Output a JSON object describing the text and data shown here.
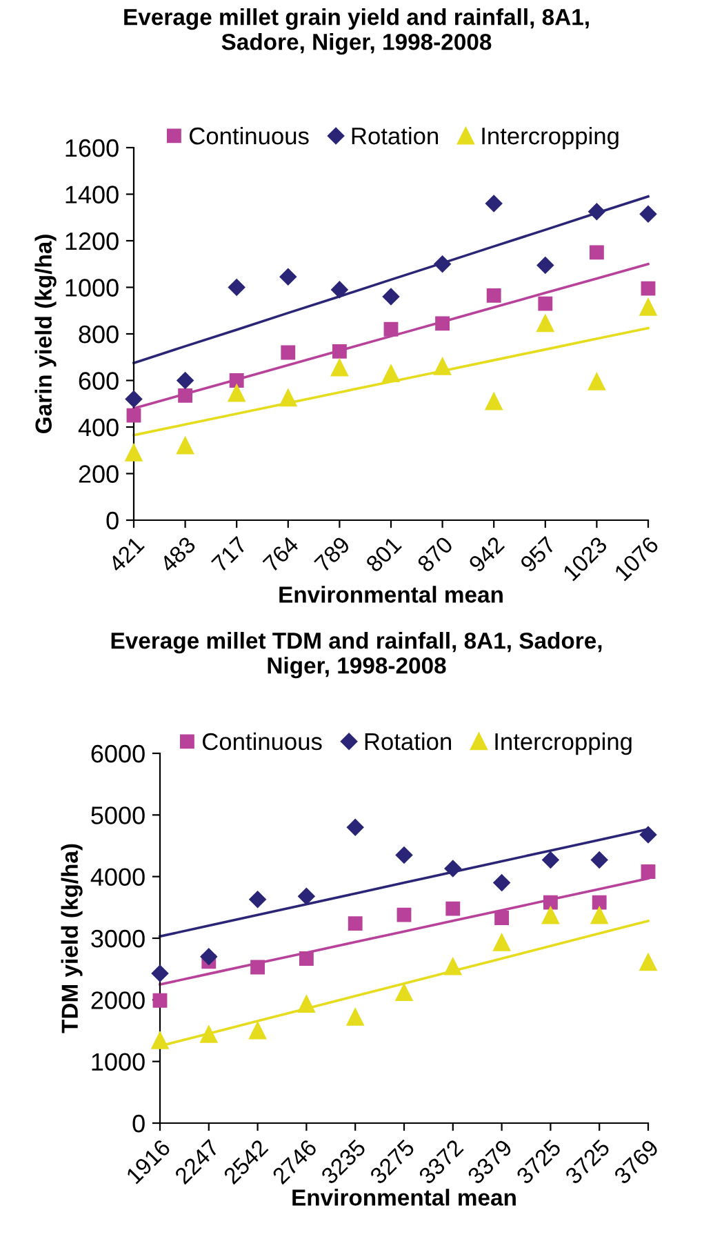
{
  "chart_data": [
    {
      "type": "scatter",
      "title": "Everage millet grain yield and rainfall, 8A1,\nSadore, Niger, 1998-2008",
      "xlabel": "Environmental mean",
      "ylabel": "Garin yield (kg/ha)",
      "categories": [
        "421",
        "483",
        "717",
        "764",
        "789",
        "801",
        "870",
        "942",
        "957",
        "1023",
        "1076"
      ],
      "ylim": [
        0,
        1600
      ],
      "yticks": [
        0,
        200,
        400,
        600,
        800,
        1000,
        1200,
        1400,
        1600
      ],
      "legend": "top",
      "grid": false,
      "series": [
        {
          "name": "Continuous",
          "color": "#b8429a",
          "marker": "square",
          "values": [
            450,
            535,
            600,
            720,
            725,
            820,
            845,
            965,
            930,
            1150,
            995
          ]
        },
        {
          "name": "Rotation",
          "color": "#2b2577",
          "marker": "diamond",
          "values": [
            520,
            600,
            1000,
            1045,
            990,
            960,
            1100,
            1360,
            1095,
            1325,
            1315
          ]
        },
        {
          "name": "Intercropping",
          "color": "#e6dc1e",
          "marker": "triangle",
          "values": [
            290,
            320,
            545,
            525,
            655,
            630,
            660,
            510,
            845,
            595,
            915
          ]
        },
        {
          "type": "line",
          "color": "#b8429a",
          "marker": "none",
          "values": [
            480,
            542,
            604,
            666,
            728,
            790,
            852,
            914,
            976,
            1038,
            1100
          ]
        },
        {
          "type": "line",
          "color": "#2b2577",
          "marker": "none",
          "values": [
            675,
            747,
            818,
            890,
            961,
            1033,
            1104,
            1176,
            1247,
            1319,
            1390
          ]
        },
        {
          "type": "line",
          "color": "#e6dc1e",
          "marker": "none",
          "values": [
            365,
            411,
            457,
            503,
            549,
            595,
            641,
            687,
            733,
            779,
            825
          ]
        }
      ]
    },
    {
      "type": "scatter",
      "title": "Everage millet TDM and rainfall, 8A1, Sadore,\nNiger, 1998-2008",
      "xlabel": "Environmental mean",
      "ylabel": "TDM yield (kg/ha)",
      "categories": [
        "1916",
        "2247",
        "2542",
        "2746",
        "3235",
        "3275",
        "3372",
        "3379",
        "3725",
        "3725",
        "3769"
      ],
      "ylim": [
        0,
        6000
      ],
      "yticks": [
        0,
        1000,
        2000,
        3000,
        4000,
        5000,
        6000
      ],
      "legend": "top",
      "grid": false,
      "series": [
        {
          "name": "Continuous",
          "color": "#b8429a",
          "marker": "square",
          "values": [
            1990,
            2620,
            2530,
            2670,
            3240,
            3380,
            3480,
            3330,
            3580,
            3580,
            4080
          ]
        },
        {
          "name": "Rotation",
          "color": "#2b2577",
          "marker": "diamond",
          "values": [
            2430,
            2700,
            3630,
            3680,
            4800,
            4350,
            4130,
            3900,
            4270,
            4270,
            4680
          ]
        },
        {
          "name": "Intercropping",
          "color": "#e6dc1e",
          "marker": "triangle",
          "values": [
            1340,
            1440,
            1500,
            1930,
            1720,
            2120,
            2540,
            2930,
            3370,
            3370,
            2610
          ]
        },
        {
          "type": "line",
          "color": "#b8429a",
          "marker": "none",
          "values": [
            2250,
            2422,
            2594,
            2766,
            2938,
            3110,
            3282,
            3454,
            3626,
            3798,
            3970
          ]
        },
        {
          "type": "line",
          "color": "#2b2577",
          "marker": "none",
          "values": [
            3030,
            3204,
            3378,
            3552,
            3726,
            3900,
            4074,
            4248,
            4422,
            4596,
            4770
          ]
        },
        {
          "type": "line",
          "color": "#e6dc1e",
          "marker": "none",
          "values": [
            1250,
            1453,
            1656,
            1859,
            2062,
            2265,
            2468,
            2671,
            2874,
            3077,
            3280
          ]
        }
      ]
    }
  ]
}
